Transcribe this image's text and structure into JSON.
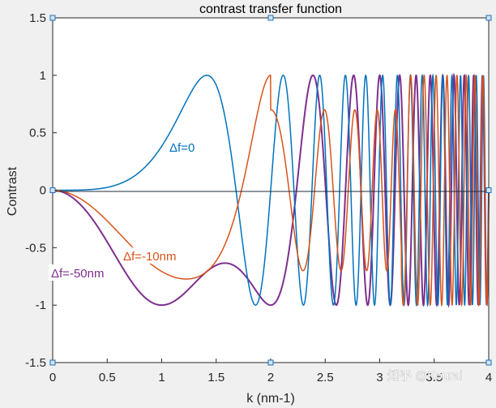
{
  "chart_data": {
    "type": "line",
    "title": "contrast transfer function",
    "xlabel": "k (nm-1)",
    "ylabel": "Contrast",
    "xlim": [
      0,
      4
    ],
    "ylim": [
      -1.5,
      1.5
    ],
    "xticks": [
      "0",
      "0.5",
      "1",
      "1.5",
      "2",
      "2.5",
      "3",
      "3.5",
      "4"
    ],
    "yticks": [
      "-1.5",
      "-1",
      "-0.5",
      "0",
      "0.5",
      "1",
      "1.5"
    ],
    "grid": false,
    "series": [
      {
        "name": "Δf=0",
        "color": "#0072BD",
        "phase_coef": 0.3927,
        "power4": true
      },
      {
        "name": "Δf=-10nm",
        "color": "#D95319",
        "phase_coef": 0.3927,
        "defocus_coef": -0.3927,
        "power4": true,
        "amplitude_note": "reaches 0.7 near k=2.5"
      },
      {
        "name": "Δf=-50nm",
        "color": "#7E2F8E",
        "phase_coef": 0.3927,
        "defocus_coef": -1.9635,
        "power4": true
      }
    ]
  },
  "watermark": "知乎 @Kourai"
}
